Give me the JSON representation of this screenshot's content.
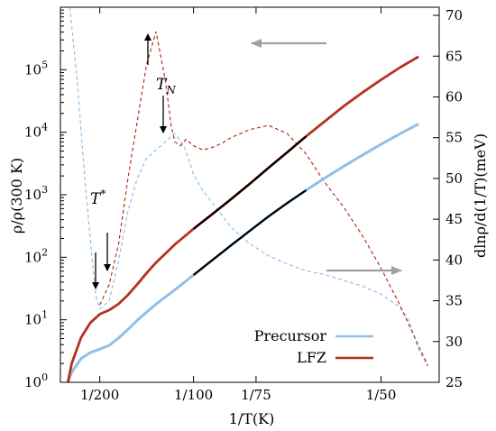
{
  "chart_data": {
    "type": "line",
    "title": "",
    "xlabel": "1/T(K)",
    "ylabel_left": "ρ/ρ(300 K)",
    "ylabel_right": "dlnρ/d(1/T)(meV)",
    "x_axis": {
      "unit": "1/K",
      "range": [
        0.0029,
        0.0231
      ],
      "ticks": [
        {
          "value": 0.005,
          "label": "1/200"
        },
        {
          "value": 0.01,
          "label": "1/100"
        },
        {
          "value": 0.013333,
          "label": "1/75"
        },
        {
          "value": 0.02,
          "label": "1/50"
        }
      ]
    },
    "y_left": {
      "scale": "log",
      "range": [
        1,
        1000000
      ],
      "ticks": [
        {
          "value": 1,
          "label": "10^0"
        },
        {
          "value": 10,
          "label": "10^1"
        },
        {
          "value": 100,
          "label": "10^2"
        },
        {
          "value": 1000,
          "label": "10^3"
        },
        {
          "value": 10000,
          "label": "10^4"
        },
        {
          "value": 100000,
          "label": "10^5"
        }
      ]
    },
    "y_right": {
      "scale": "linear",
      "range": [
        25,
        71
      ],
      "ticks": [
        25,
        30,
        35,
        40,
        45,
        50,
        55,
        60,
        65,
        70
      ]
    },
    "grid": false,
    "legend_position": "bottom-right",
    "colors": {
      "precursor": "#8ec0ea",
      "lfz": "#b5321f",
      "fit": "#000000",
      "arrow": "#a0a0a0"
    },
    "legend": [
      {
        "name": "Precursor",
        "color": "#8ec0ea"
      },
      {
        "name": "LFZ",
        "color": "#b5321f"
      }
    ],
    "series": [
      {
        "name": "Precursor",
        "kind": "resistivity (left axis)",
        "style": "solid",
        "x": [
          0.0033,
          0.0035,
          0.004,
          0.0045,
          0.005,
          0.0055,
          0.006,
          0.0065,
          0.007,
          0.0075,
          0.008,
          0.009,
          0.01,
          0.011,
          0.012,
          0.013,
          0.014,
          0.015,
          0.016,
          0.017,
          0.018,
          0.019,
          0.02,
          0.021,
          0.022
        ],
        "y": [
          1.0,
          1.45,
          2.4,
          3.0,
          3.4,
          3.9,
          5.1,
          7.0,
          9.8,
          13.3,
          17.8,
          30,
          52,
          90,
          155,
          265,
          450,
          740,
          1180,
          1850,
          2850,
          4300,
          6400,
          9400,
          13600
        ]
      },
      {
        "name": "LFZ",
        "kind": "resistivity (left axis)",
        "style": "solid",
        "x": [
          0.0033,
          0.0035,
          0.004,
          0.0045,
          0.005,
          0.0055,
          0.006,
          0.0065,
          0.007,
          0.0075,
          0.008,
          0.009,
          0.01,
          0.011,
          0.012,
          0.013,
          0.014,
          0.015,
          0.016,
          0.017,
          0.018,
          0.019,
          0.02,
          0.021,
          0.022
        ],
        "y": [
          1.0,
          2.0,
          5.2,
          9.0,
          12.3,
          14.3,
          18.0,
          25.0,
          37,
          56,
          82,
          160,
          285,
          490,
          850,
          1500,
          2700,
          4800,
          8600,
          15000,
          26000,
          43000,
          69000,
          108000,
          162000
        ]
      },
      {
        "name": "Precursor",
        "kind": "dlnρ/d(1/T) (right axis)",
        "style": "dashed",
        "x": [
          0.0034,
          0.0038,
          0.0042,
          0.0046,
          0.0048,
          0.005,
          0.0055,
          0.006,
          0.0065,
          0.007,
          0.0075,
          0.008,
          0.0085,
          0.009,
          0.0095,
          0.01,
          0.0105,
          0.011,
          0.0115,
          0.012,
          0.013,
          0.014,
          0.015,
          0.016,
          0.017,
          0.018,
          0.019,
          0.02,
          0.021,
          0.0215,
          0.022,
          0.0225
        ],
        "y": [
          71,
          62,
          50,
          40,
          35.5,
          34,
          35,
          40,
          46,
          50,
          52.5,
          53.5,
          54.5,
          55.5,
          54,
          50.5,
          48.5,
          47,
          45.5,
          44,
          42,
          40.5,
          39.5,
          38.7,
          38.2,
          37.5,
          36.8,
          35.8,
          34.2,
          32.5,
          29,
          27
        ]
      },
      {
        "name": "LFZ",
        "kind": "dlnρ/d(1/T) (right axis)",
        "style": "dashed",
        "x": [
          0.005,
          0.0055,
          0.006,
          0.0065,
          0.007,
          0.0075,
          0.008,
          0.0085,
          0.0088,
          0.009,
          0.0093,
          0.0096,
          0.01,
          0.0105,
          0.011,
          0.0115,
          0.012,
          0.013,
          0.014,
          0.015,
          0.016,
          0.017,
          0.018,
          0.019,
          0.02,
          0.021,
          0.022,
          0.0225
        ],
        "y": [
          34.5,
          37,
          42,
          50,
          57,
          64,
          68,
          62,
          56.5,
          54.5,
          54,
          54.8,
          54,
          53.5,
          53.8,
          54.3,
          55,
          56,
          56.5,
          55.5,
          53,
          49.5,
          46.5,
          43,
          39,
          34.5,
          29.5,
          27
        ]
      }
    ],
    "fit_segments": [
      {
        "on_series": "LFZ",
        "x_range": [
          0.01,
          0.016
        ]
      },
      {
        "on_series": "Precursor",
        "x_range": [
          0.01,
          0.016
        ]
      }
    ],
    "annotations": [
      {
        "text": "T_N",
        "base": "T",
        "sub": "N"
      },
      {
        "text": "T*",
        "base": "T",
        "sup": "*"
      }
    ],
    "direction_arrows": [
      {
        "points_to": "left axis"
      },
      {
        "points_to": "right axis"
      }
    ]
  }
}
